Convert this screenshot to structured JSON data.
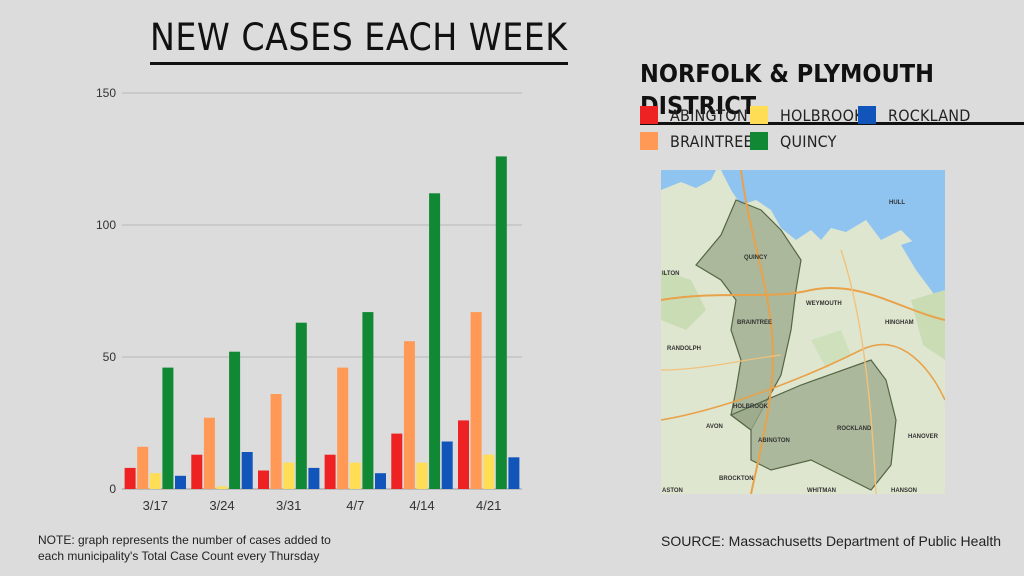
{
  "title": "NEW CASES EACH WEEK",
  "legend_title": "NORFOLK & PLYMOUTH DISTRICT",
  "note": "NOTE: graph represents the number of cases added to each municipality's Total Case Count every Thursday",
  "source": "SOURCE: Massachusetts Department of Public Health",
  "colors": {
    "Abington": "#ee2222",
    "Braintree": "#ff9955",
    "Holbrook": "#ffdd55",
    "Quincy": "#118833",
    "Rockland": "#1155bb"
  },
  "legend": [
    {
      "label": "ABINGTON",
      "color": "#ee2222"
    },
    {
      "label": "HOLBROOK",
      "color": "#ffdd55"
    },
    {
      "label": "ROCKLAND",
      "color": "#1155bb"
    },
    {
      "label": "BRAINTREE",
      "color": "#ff9955"
    },
    {
      "label": "QUINCY",
      "color": "#118833"
    }
  ],
  "map": {
    "labels": [
      "QUINCY",
      "WEYMOUTH",
      "BRAINTREE",
      "HINGHAM",
      "RANDOLPH",
      "HOLBROOK",
      "ROCKLAND",
      "ABINGTON",
      "AVON",
      "HANOVER",
      "BROCKTON",
      "WHITMAN",
      "HANSON",
      "ASTON",
      "ILTON",
      "HULL"
    ]
  },
  "chart_data": {
    "type": "bar",
    "categories": [
      "3/17",
      "3/24",
      "3/31",
      "4/7",
      "4/14",
      "4/21"
    ],
    "series": [
      {
        "name": "ABINGTON",
        "values": [
          8,
          13,
          7,
          13,
          21,
          26
        ]
      },
      {
        "name": "BRAINTREE",
        "values": [
          16,
          27,
          36,
          46,
          56,
          67
        ]
      },
      {
        "name": "HOLBROOK",
        "values": [
          6,
          1,
          10,
          10,
          10,
          13
        ]
      },
      {
        "name": "QUINCY",
        "values": [
          46,
          52,
          63,
          67,
          112,
          126
        ]
      },
      {
        "name": "ROCKLAND",
        "values": [
          5,
          14,
          8,
          6,
          18,
          12
        ]
      }
    ],
    "title": "NEW CASES EACH WEEK",
    "xlabel": "",
    "ylabel": "",
    "ylim": [
      0,
      150
    ],
    "yticks": [
      0,
      50,
      100,
      150
    ],
    "grid": true,
    "legend_position": "top-right"
  }
}
